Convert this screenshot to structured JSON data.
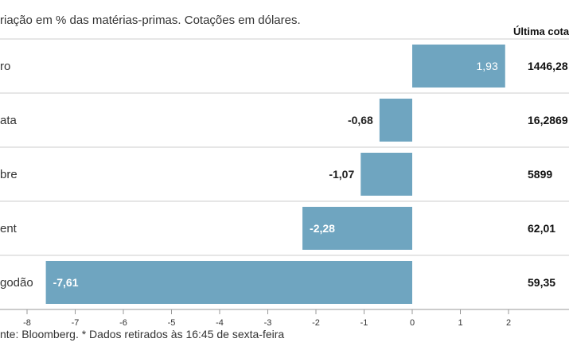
{
  "subtitle": "riação em % das matérias-primas. Cotações em dólares.",
  "column_header": "Última cotaç",
  "source": "nte: Bloomberg.  * Dados retirados às 16:45 de sexta-feira",
  "colors": {
    "bar": "#6fa5c0",
    "row_line": "#cccccc",
    "axis": "#999999"
  },
  "chart_data": {
    "type": "bar",
    "orientation": "horizontal",
    "categories": [
      "ro",
      "ata",
      "bre",
      "ent",
      "godão"
    ],
    "values": [
      1.93,
      -0.68,
      -1.07,
      -2.28,
      -7.61
    ],
    "value_labels": [
      "1,93",
      "-0,68",
      "-1,07",
      "-2,28",
      "-7,61"
    ],
    "last_quote": [
      "1446,28",
      "16,2869",
      "5899",
      "62,01",
      "59,35"
    ],
    "xlim": [
      -8,
      2
    ],
    "ticks": [
      -8,
      -7,
      -6,
      -5,
      -4,
      -3,
      -2,
      -1,
      0,
      1,
      2
    ],
    "tick_labels": [
      "-8",
      "-7",
      "-6",
      "-5",
      "-4",
      "-3",
      "-2",
      "-1",
      "0",
      "1",
      "2"
    ],
    "grid": false
  }
}
